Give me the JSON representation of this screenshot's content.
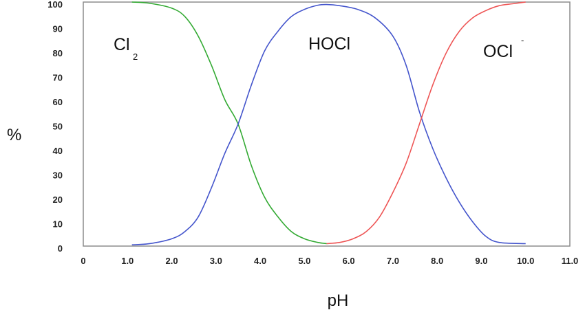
{
  "chart_data": {
    "type": "line",
    "xlabel": "pH",
    "ylabel": "%",
    "xlim": [
      0,
      11
    ],
    "ylim": [
      0,
      100
    ],
    "grid": false,
    "x_ticks": [
      "0",
      "1.0",
      "2.0",
      "3.0",
      "4.0",
      "5.0",
      "6.0",
      "7.0",
      "8.0",
      "9.0",
      "10.0",
      "11.0"
    ],
    "y_ticks": [
      "0",
      "10",
      "20",
      "30",
      "40",
      "50",
      "60",
      "70",
      "80",
      "90",
      "100"
    ],
    "series": [
      {
        "label_main": "Cl",
        "label_sub": "2",
        "color": "#33aa33",
        "x": [
          1.1,
          1.5,
          2.0,
          2.3,
          2.6,
          2.9,
          3.2,
          3.5,
          3.8,
          4.1,
          4.4,
          4.7,
          5.0,
          5.3,
          5.5
        ],
        "y": [
          100,
          99.5,
          97.5,
          94,
          86,
          74,
          60,
          50,
          33,
          20,
          12,
          6,
          3,
          1.5,
          1
        ]
      },
      {
        "label_main": "HOCl",
        "label_sub": "",
        "color": "#4455cc",
        "x": [
          1.1,
          1.5,
          2.0,
          2.3,
          2.6,
          2.9,
          3.2,
          3.5,
          3.8,
          4.1,
          4.4,
          4.7,
          5.0,
          5.3,
          5.5,
          5.8,
          6.2,
          6.6,
          7.0,
          7.3,
          7.6,
          7.9,
          8.2,
          8.5,
          8.8,
          9.1,
          9.4,
          10.0
        ],
        "y": [
          0.5,
          1,
          3,
          6,
          12,
          24,
          38,
          50,
          66,
          80,
          88,
          94,
          97,
          98.7,
          99,
          98.5,
          97,
          93.5,
          86,
          74,
          55,
          40,
          28,
          18,
          10,
          4,
          1.5,
          1
        ]
      },
      {
        "label_main": "OCl",
        "label_sub": "",
        "label_sup": "-",
        "color": "#ee5555",
        "x": [
          5.5,
          5.8,
          6.1,
          6.4,
          6.7,
          7.0,
          7.3,
          7.6,
          7.9,
          8.2,
          8.5,
          8.8,
          9.1,
          9.4,
          9.7,
          10.0
        ],
        "y": [
          1,
          1.5,
          3,
          6,
          12,
          22,
          34,
          50,
          66,
          79,
          88,
          93.5,
          96.5,
          98.5,
          99.3,
          100
        ]
      }
    ]
  }
}
